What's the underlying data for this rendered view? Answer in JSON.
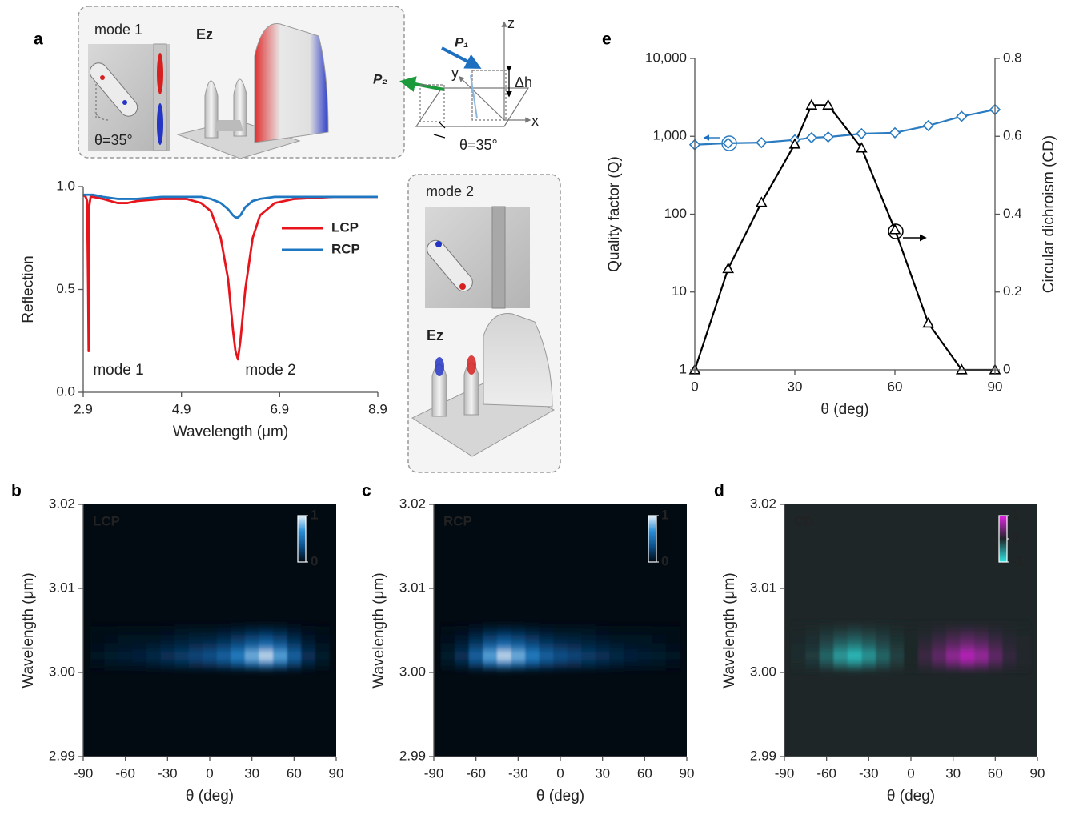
{
  "inset_a": {
    "mode": "mode 1",
    "field": "Ez",
    "angle": "θ=35°",
    "z": "z",
    "y": "y",
    "x": "x",
    "p1": "P₁",
    "p2": "P₂",
    "dh": "Δh",
    "angle2": "θ=35°"
  },
  "inset_mode2": {
    "mode": "mode 2",
    "field": "Ez"
  },
  "chart_data": [
    {
      "type": "line",
      "panel": "a",
      "xlabel": "Wavelength (μm)",
      "ylabel": "Reflection",
      "xlim": [
        2.9,
        8.9
      ],
      "xticks": [
        2.9,
        4.9,
        6.9,
        8.9
      ],
      "ylim": [
        0,
        1
      ],
      "yticks": [
        {
          "value": 0,
          "label": "0.0"
        },
        0.5,
        {
          "value": 1,
          "label": "1.0"
        }
      ],
      "legend": "upper right",
      "annotations": [
        "mode 1",
        "mode 2"
      ],
      "x": [
        2.9,
        2.95,
        2.98,
        3.0,
        3.01,
        3.02,
        3.05,
        3.1,
        3.3,
        3.6,
        3.8,
        4.0,
        4.5,
        5.0,
        5.3,
        5.5,
        5.7,
        5.85,
        5.95,
        6.0,
        6.05,
        6.1,
        6.2,
        6.35,
        6.5,
        6.8,
        7.2,
        8.0,
        8.9
      ],
      "series": [
        {
          "name": "LCP",
          "color": "#e8141c",
          "values": [
            0.96,
            0.95,
            0.93,
            0.5,
            0.2,
            0.9,
            0.95,
            0.95,
            0.94,
            0.92,
            0.92,
            0.93,
            0.94,
            0.94,
            0.92,
            0.88,
            0.75,
            0.55,
            0.3,
            0.2,
            0.16,
            0.25,
            0.5,
            0.75,
            0.86,
            0.92,
            0.94,
            0.95,
            0.95
          ]
        },
        {
          "name": "RCP",
          "color": "#1f77c2",
          "values": [
            0.96,
            0.96,
            0.96,
            0.96,
            0.96,
            0.96,
            0.96,
            0.96,
            0.95,
            0.94,
            0.94,
            0.94,
            0.95,
            0.95,
            0.95,
            0.94,
            0.92,
            0.89,
            0.86,
            0.85,
            0.85,
            0.86,
            0.9,
            0.93,
            0.94,
            0.95,
            0.95,
            0.95,
            0.95
          ]
        }
      ]
    },
    {
      "type": "line",
      "panel": "e",
      "xlabel": "θ (deg)",
      "ylabel": "Quality factor (Q)",
      "y2label": "Circular dichroism (CD)",
      "yaxis_color": "#2b7bc0",
      "xlim": [
        0,
        90
      ],
      "xticks": [
        0,
        30,
        60,
        90
      ],
      "ylim": [
        1,
        10000
      ],
      "ylog": true,
      "yticks": [
        1,
        10,
        100,
        {
          "value": 1000,
          "label": "1,000"
        },
        {
          "value": 10000,
          "label": "10,000"
        }
      ],
      "y2lim": [
        0,
        0.8
      ],
      "y2ticks": [
        0,
        0.2,
        0.4,
        0.6,
        0.8
      ],
      "x": [
        0,
        10,
        20,
        30,
        35,
        40,
        50,
        60,
        70,
        80,
        90
      ],
      "series": [
        {
          "color": "#2b7bc0",
          "marker": "diamond",
          "values": [
            780,
            815,
            830,
            900,
            960,
            980,
            1080,
            1110,
            1370,
            1800,
            2200
          ]
        },
        {
          "color": "#000000",
          "marker": "triangle",
          "axis": "y2",
          "values": [
            0,
            0.26,
            0.43,
            0.58,
            0.68,
            0.68,
            0.57,
            0.36,
            0.12,
            0,
            0
          ]
        }
      ]
    },
    {
      "type": "heatmap",
      "panel": "b",
      "label": "LCP",
      "xlabel": "θ (deg)",
      "ylabel": "Wavelength (μm)",
      "xlim": [
        -90,
        90
      ],
      "xticks": [
        -90,
        -60,
        -30,
        0,
        30,
        60,
        90
      ],
      "ylim": [
        2.99,
        3.02
      ],
      "yticks": [
        2.99,
        {
          "value": 3,
          "label": "3.00"
        },
        3.01,
        3.02
      ],
      "colormap": [
        "#020a12",
        "#0b4f8a",
        "#2b8fd6",
        "#e6f2fb"
      ],
      "zlim": [
        0,
        1
      ],
      "colorbar_ticks": [
        1,
        0
      ],
      "x": [
        -80,
        -70,
        -60,
        -50,
        -40,
        -30,
        -20,
        -10,
        0,
        10,
        20,
        30,
        40,
        50,
        60,
        70,
        80
      ],
      "y": [
        3.001,
        3.002,
        3.003,
        3.004,
        3.005
      ],
      "z": [
        [
          0.03,
          0.05,
          0.06,
          0.07,
          0.09,
          0.12,
          0.15,
          0.18,
          0.21,
          0.27,
          0.36,
          0.48,
          0.57,
          0.45,
          0.27,
          0.12,
          0.05
        ],
        [
          0.05,
          0.08,
          0.1,
          0.12,
          0.15,
          0.2,
          0.25,
          0.3,
          0.35,
          0.45,
          0.6,
          0.8,
          0.95,
          0.75,
          0.45,
          0.2,
          0.08
        ],
        [
          0.03,
          0.05,
          0.06,
          0.07,
          0.09,
          0.12,
          0.15,
          0.18,
          0.21,
          0.27,
          0.36,
          0.48,
          0.57,
          0.45,
          0.27,
          0.12,
          0.05
        ],
        [
          0.02,
          0.03,
          0.04,
          0.04,
          0.05,
          0.07,
          0.09,
          0.11,
          0.12,
          0.16,
          0.21,
          0.28,
          0.33,
          0.26,
          0.16,
          0.07,
          0.03
        ],
        [
          0.01,
          0.01,
          0.02,
          0.02,
          0.02,
          0.03,
          0.04,
          0.05,
          0.05,
          0.07,
          0.09,
          0.12,
          0.14,
          0.11,
          0.07,
          0.03,
          0.01
        ]
      ]
    },
    {
      "type": "heatmap",
      "panel": "c",
      "label": "RCP",
      "xlabel": "θ (deg)",
      "ylabel": "Wavelength (μm)",
      "xlim": [
        -90,
        90
      ],
      "xticks": [
        -90,
        -60,
        -30,
        0,
        30,
        60,
        90
      ],
      "ylim": [
        2.99,
        3.02
      ],
      "yticks": [
        2.99,
        {
          "value": 3,
          "label": "3.00"
        },
        3.01,
        3.02
      ],
      "colormap": [
        "#020a12",
        "#0b4f8a",
        "#2b8fd6",
        "#e6f2fb"
      ],
      "zlim": [
        0,
        1
      ],
      "colorbar_ticks": [
        1,
        0
      ],
      "x": [
        -80,
        -70,
        -60,
        -50,
        -40,
        -30,
        -20,
        -10,
        0,
        10,
        20,
        30,
        40,
        50,
        60,
        70,
        80
      ],
      "y": [
        3.001,
        3.002,
        3.003,
        3.004,
        3.005
      ],
      "z": [
        [
          0.05,
          0.12,
          0.27,
          0.45,
          0.57,
          0.48,
          0.36,
          0.27,
          0.21,
          0.18,
          0.15,
          0.12,
          0.09,
          0.07,
          0.06,
          0.05,
          0.03
        ],
        [
          0.08,
          0.2,
          0.45,
          0.75,
          0.95,
          0.8,
          0.6,
          0.45,
          0.35,
          0.3,
          0.25,
          0.2,
          0.15,
          0.12,
          0.1,
          0.08,
          0.05
        ],
        [
          0.05,
          0.12,
          0.27,
          0.45,
          0.57,
          0.48,
          0.36,
          0.27,
          0.21,
          0.18,
          0.15,
          0.12,
          0.09,
          0.07,
          0.06,
          0.05,
          0.03
        ],
        [
          0.03,
          0.07,
          0.16,
          0.26,
          0.33,
          0.28,
          0.21,
          0.16,
          0.12,
          0.11,
          0.09,
          0.07,
          0.05,
          0.04,
          0.04,
          0.03,
          0.02
        ],
        [
          0.01,
          0.03,
          0.07,
          0.11,
          0.14,
          0.12,
          0.09,
          0.07,
          0.05,
          0.05,
          0.04,
          0.03,
          0.02,
          0.02,
          0.02,
          0.01,
          0.01
        ]
      ]
    },
    {
      "type": "heatmap",
      "panel": "d",
      "label": "CD",
      "xlabel": "θ (deg)",
      "ylabel": "Wavelength (μm)",
      "xlim": [
        -90,
        90
      ],
      "xticks": [
        -90,
        -60,
        -30,
        0,
        30,
        60,
        90
      ],
      "ylim": [
        2.99,
        3.02
      ],
      "yticks": [
        2.99,
        {
          "value": 3,
          "label": "3.00"
        },
        3.01,
        3.02
      ],
      "colormap": [
        "#30e6e6",
        "#1e2628",
        "#e624e6"
      ],
      "zlim": [
        -1,
        1
      ],
      "colorbar_ticks": [
        1,
        0,
        -1
      ],
      "x": [
        -80,
        -70,
        -60,
        -50,
        -40,
        -30,
        -20,
        -10,
        0,
        10,
        20,
        30,
        40,
        50,
        60,
        70,
        80
      ],
      "y": [
        3.001,
        3.002,
        3.003,
        3.004,
        3.005
      ],
      "z": [
        [
          -0.02,
          -0.07,
          -0.21,
          -0.38,
          -0.48,
          -0.36,
          -0.21,
          -0.09,
          0,
          0.09,
          0.21,
          0.36,
          0.48,
          0.38,
          0.21,
          0.07,
          0.02
        ],
        [
          -0.03,
          -0.12,
          -0.35,
          -0.63,
          -0.8,
          -0.6,
          -0.35,
          -0.15,
          0,
          0.15,
          0.35,
          0.6,
          0.8,
          0.63,
          0.35,
          0.12,
          0.03
        ],
        [
          -0.02,
          -0.07,
          -0.21,
          -0.38,
          -0.48,
          -0.36,
          -0.21,
          -0.09,
          0,
          0.09,
          0.21,
          0.36,
          0.48,
          0.38,
          0.21,
          0.07,
          0.02
        ],
        [
          -0.01,
          -0.04,
          -0.12,
          -0.22,
          -0.28,
          -0.21,
          -0.12,
          -0.05,
          0,
          0.05,
          0.12,
          0.21,
          0.28,
          0.22,
          0.12,
          0.04,
          0.01
        ],
        [
          0,
          -0.02,
          -0.05,
          -0.09,
          -0.12,
          -0.09,
          -0.05,
          -0.02,
          0,
          0.02,
          0.05,
          0.09,
          0.12,
          0.09,
          0.05,
          0.02,
          0
        ]
      ]
    }
  ]
}
